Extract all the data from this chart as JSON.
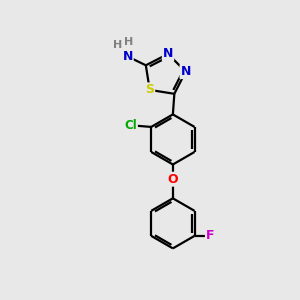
{
  "background_color": "#e8e8e8",
  "atom_colors": {
    "C": "#000000",
    "N": "#0000cd",
    "S": "#cccc00",
    "O": "#ff0000",
    "Cl": "#00aa00",
    "F": "#cc00cc",
    "H": "#808080"
  },
  "bond_color": "#000000",
  "bond_width": 1.6,
  "fig_bg": "#e8e8e8"
}
